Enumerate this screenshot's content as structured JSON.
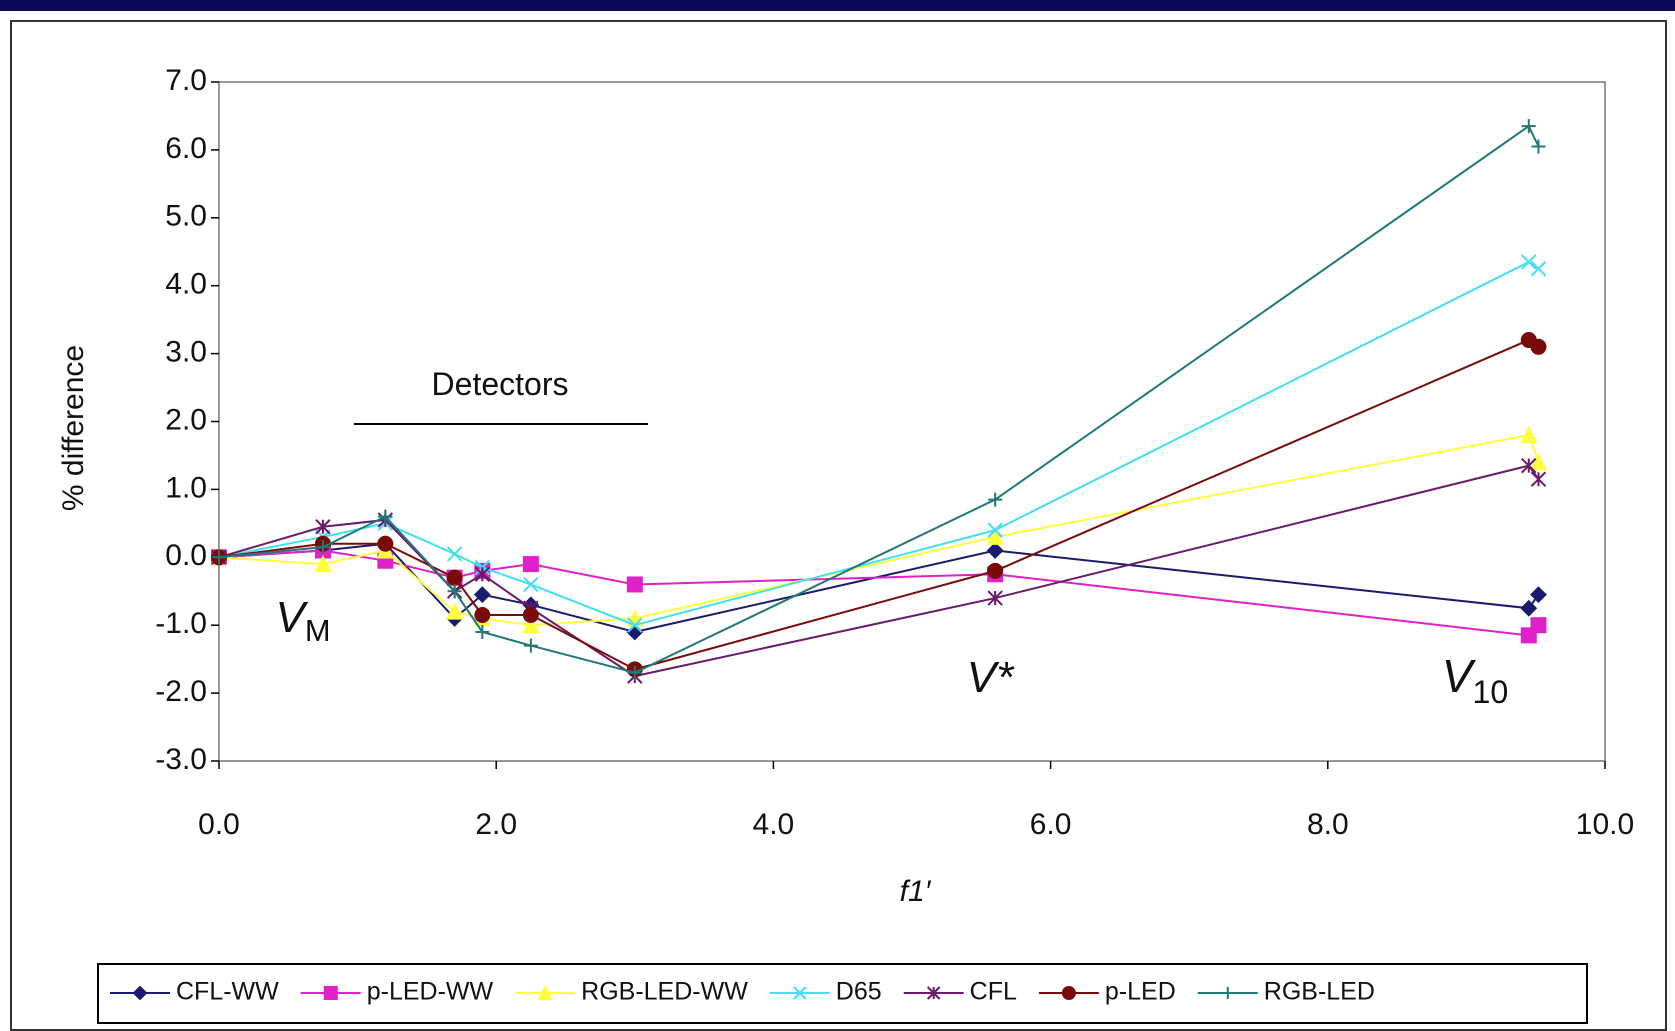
{
  "chart_data": {
    "type": "line",
    "x_label": "f1′",
    "y_label": "% difference",
    "x": [
      0,
      0.75,
      1.2,
      1.7,
      1.9,
      2.25,
      3.0,
      5.6,
      9.45,
      9.52
    ],
    "series": [
      {
        "name": "CFL-WW",
        "color": "#1a1a6e",
        "marker": "diamond",
        "values": [
          0,
          0.1,
          0.2,
          -0.9,
          -0.55,
          -0.7,
          -1.1,
          0.1,
          -0.75,
          -0.55
        ]
      },
      {
        "name": "p-LED-WW",
        "color": "#e020c8",
        "marker": "square",
        "values": [
          0,
          0.1,
          -0.05,
          -0.3,
          -0.2,
          -0.1,
          -0.4,
          -0.25,
          -1.15,
          -1.0
        ]
      },
      {
        "name": "RGB-LED-WW",
        "color": "#ffff40",
        "marker": "triangle",
        "values": [
          0,
          -0.1,
          0.1,
          -0.8,
          -0.9,
          -1.0,
          -0.9,
          0.3,
          1.8,
          1.4
        ]
      },
      {
        "name": "D65",
        "color": "#40e0f0",
        "marker": "x",
        "values": [
          0,
          0.3,
          0.5,
          0.05,
          -0.15,
          -0.4,
          -1.0,
          0.4,
          4.35,
          4.25
        ]
      },
      {
        "name": "CFL",
        "color": "#6a1a6a",
        "marker": "star",
        "values": [
          0,
          0.45,
          0.55,
          -0.5,
          -0.25,
          -0.75,
          -1.75,
          -0.6,
          1.35,
          1.15
        ]
      },
      {
        "name": "p-LED",
        "color": "#7a0a0a",
        "marker": "circle",
        "values": [
          0,
          0.2,
          0.2,
          -0.3,
          -0.85,
          -0.85,
          -1.65,
          -0.2,
          3.2,
          3.1
        ]
      },
      {
        "name": "RGB-LED",
        "color": "#207878",
        "marker": "plus",
        "values": [
          0,
          0.15,
          0.6,
          -0.5,
          -1.1,
          -1.3,
          -1.7,
          0.85,
          6.35,
          6.05
        ]
      }
    ],
    "xlim": [
      0,
      10
    ],
    "xticks": [
      {
        "value": 0,
        "label": "0.0"
      },
      {
        "value": 2,
        "label": "2.0"
      },
      {
        "value": 4,
        "label": "4.0"
      },
      {
        "value": 6,
        "label": "6.0"
      },
      {
        "value": 8,
        "label": "8.0"
      },
      {
        "value": 10,
        "label": "10.0"
      }
    ],
    "ylim": [
      -3,
      7
    ],
    "yticks": [
      {
        "value": -3,
        "label": "-3.0"
      },
      {
        "value": -2,
        "label": "-2.0"
      },
      {
        "value": -1,
        "label": "-1.0"
      },
      {
        "value": 0,
        "label": "0.0"
      },
      {
        "value": 1,
        "label": "1.0"
      },
      {
        "value": 2,
        "label": "2.0"
      },
      {
        "value": 3,
        "label": "3.0"
      },
      {
        "value": 4,
        "label": "4.0"
      },
      {
        "value": 5,
        "label": "5.0"
      },
      {
        "value": 6,
        "label": "6.0"
      },
      {
        "value": 7,
        "label": "7.0"
      }
    ],
    "annotations": [
      {
        "text": "Detectors"
      },
      {
        "text": "V",
        "sub": "M"
      },
      {
        "text": "V*"
      },
      {
        "text": "V",
        "sub": "10"
      }
    ],
    "legend": "bottom"
  }
}
